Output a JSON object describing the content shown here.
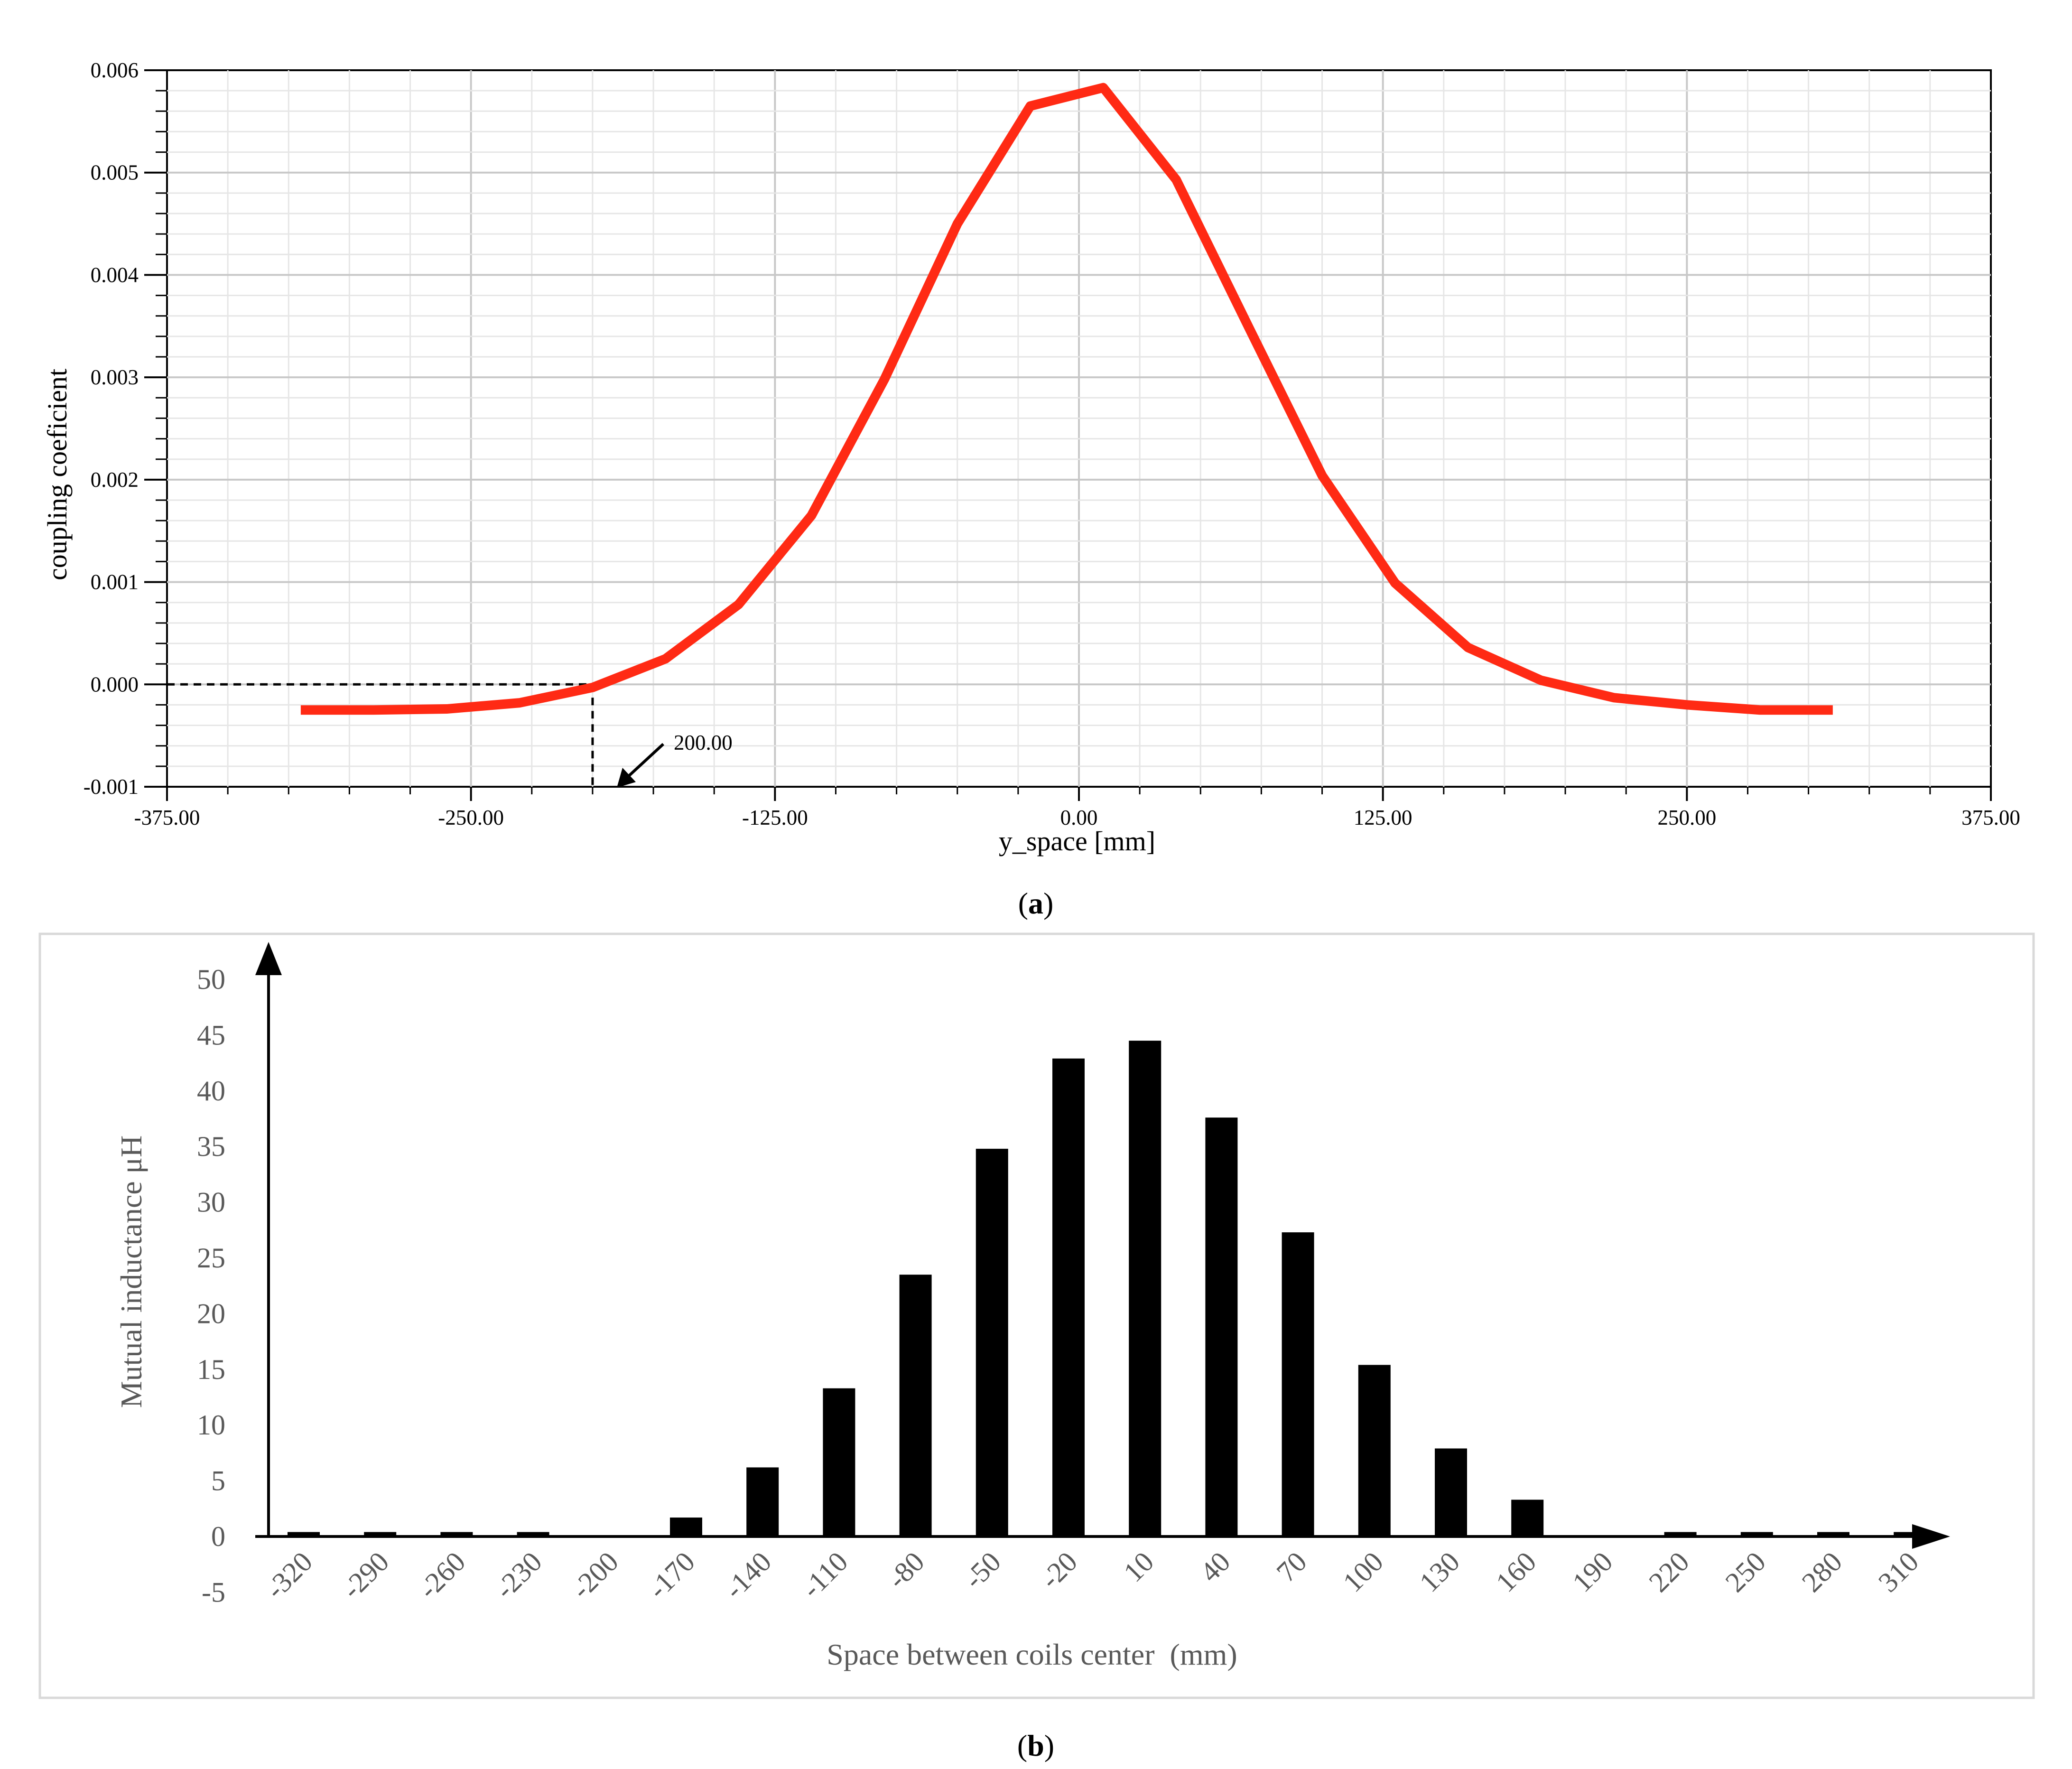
{
  "captions": {
    "a": {
      "open": "(",
      "letter": "a",
      "close": ")"
    },
    "b": {
      "open": "(",
      "letter": "b",
      "close": ")"
    }
  },
  "colors": {
    "curve": "#ff2a14",
    "bars": "#000000",
    "grid": "#d0d0d0",
    "tick_b": "#595959"
  },
  "chart_data": [
    {
      "type": "line",
      "xlabel": "y_space [mm]",
      "ylabel": "coupling coeficient",
      "xlim": [
        -375,
        375
      ],
      "ylim": [
        -0.001,
        0.006
      ],
      "x_ticks": [
        "-375.00",
        "-250.00",
        "-125.00",
        "0.00",
        "125.00",
        "250.00",
        "375.00"
      ],
      "y_ticks": [
        "0.006",
        "0.005",
        "0.004",
        "0.003",
        "0.002",
        "0.001",
        "0.000",
        "-0.001"
      ],
      "grid": true,
      "series": [
        {
          "x": [
            -320,
            -290,
            -260,
            -230,
            -200,
            -170,
            -140,
            -110,
            -80,
            -50,
            -20,
            10,
            40,
            70,
            100,
            130,
            160,
            190,
            220,
            250,
            280,
            310
          ],
          "y": [
            -0.00025,
            -0.00025,
            -0.00024,
            -0.00018,
            -3e-05,
            0.00025,
            0.00078,
            0.00165,
            0.00298,
            0.0045,
            0.00565,
            0.00583,
            0.00493,
            0.00348,
            0.00204,
            0.00099,
            0.00036,
            4e-05,
            -0.00013,
            -0.0002,
            -0.00025,
            -0.00025
          ]
        }
      ],
      "annotation": {
        "text": "200.00",
        "x": -200,
        "y": 0
      }
    },
    {
      "type": "bar",
      "xlabel": "Space between coils center  (mm)",
      "ylabel": "Mutual inductance μH",
      "ylim": [
        -5,
        50
      ],
      "y_ticks": [
        "50",
        "45",
        "40",
        "35",
        "30",
        "25",
        "20",
        "15",
        "10",
        "5",
        "0",
        "-5"
      ],
      "categories": [
        "-320",
        "-290",
        "-260",
        "-230",
        "-200",
        "-170",
        "-140",
        "-110",
        "-80",
        "-50",
        "-20",
        "10",
        "40",
        "70",
        "100",
        "130",
        "160",
        "190",
        "220",
        "250",
        "280",
        "310"
      ],
      "values": [
        0.4,
        0.4,
        0.4,
        0.4,
        0.0,
        1.7,
        6.2,
        13.3,
        23.5,
        34.8,
        42.9,
        44.5,
        37.6,
        27.3,
        15.4,
        7.9,
        3.3,
        0.0,
        0.4,
        0.4,
        0.4,
        0.4
      ]
    }
  ]
}
